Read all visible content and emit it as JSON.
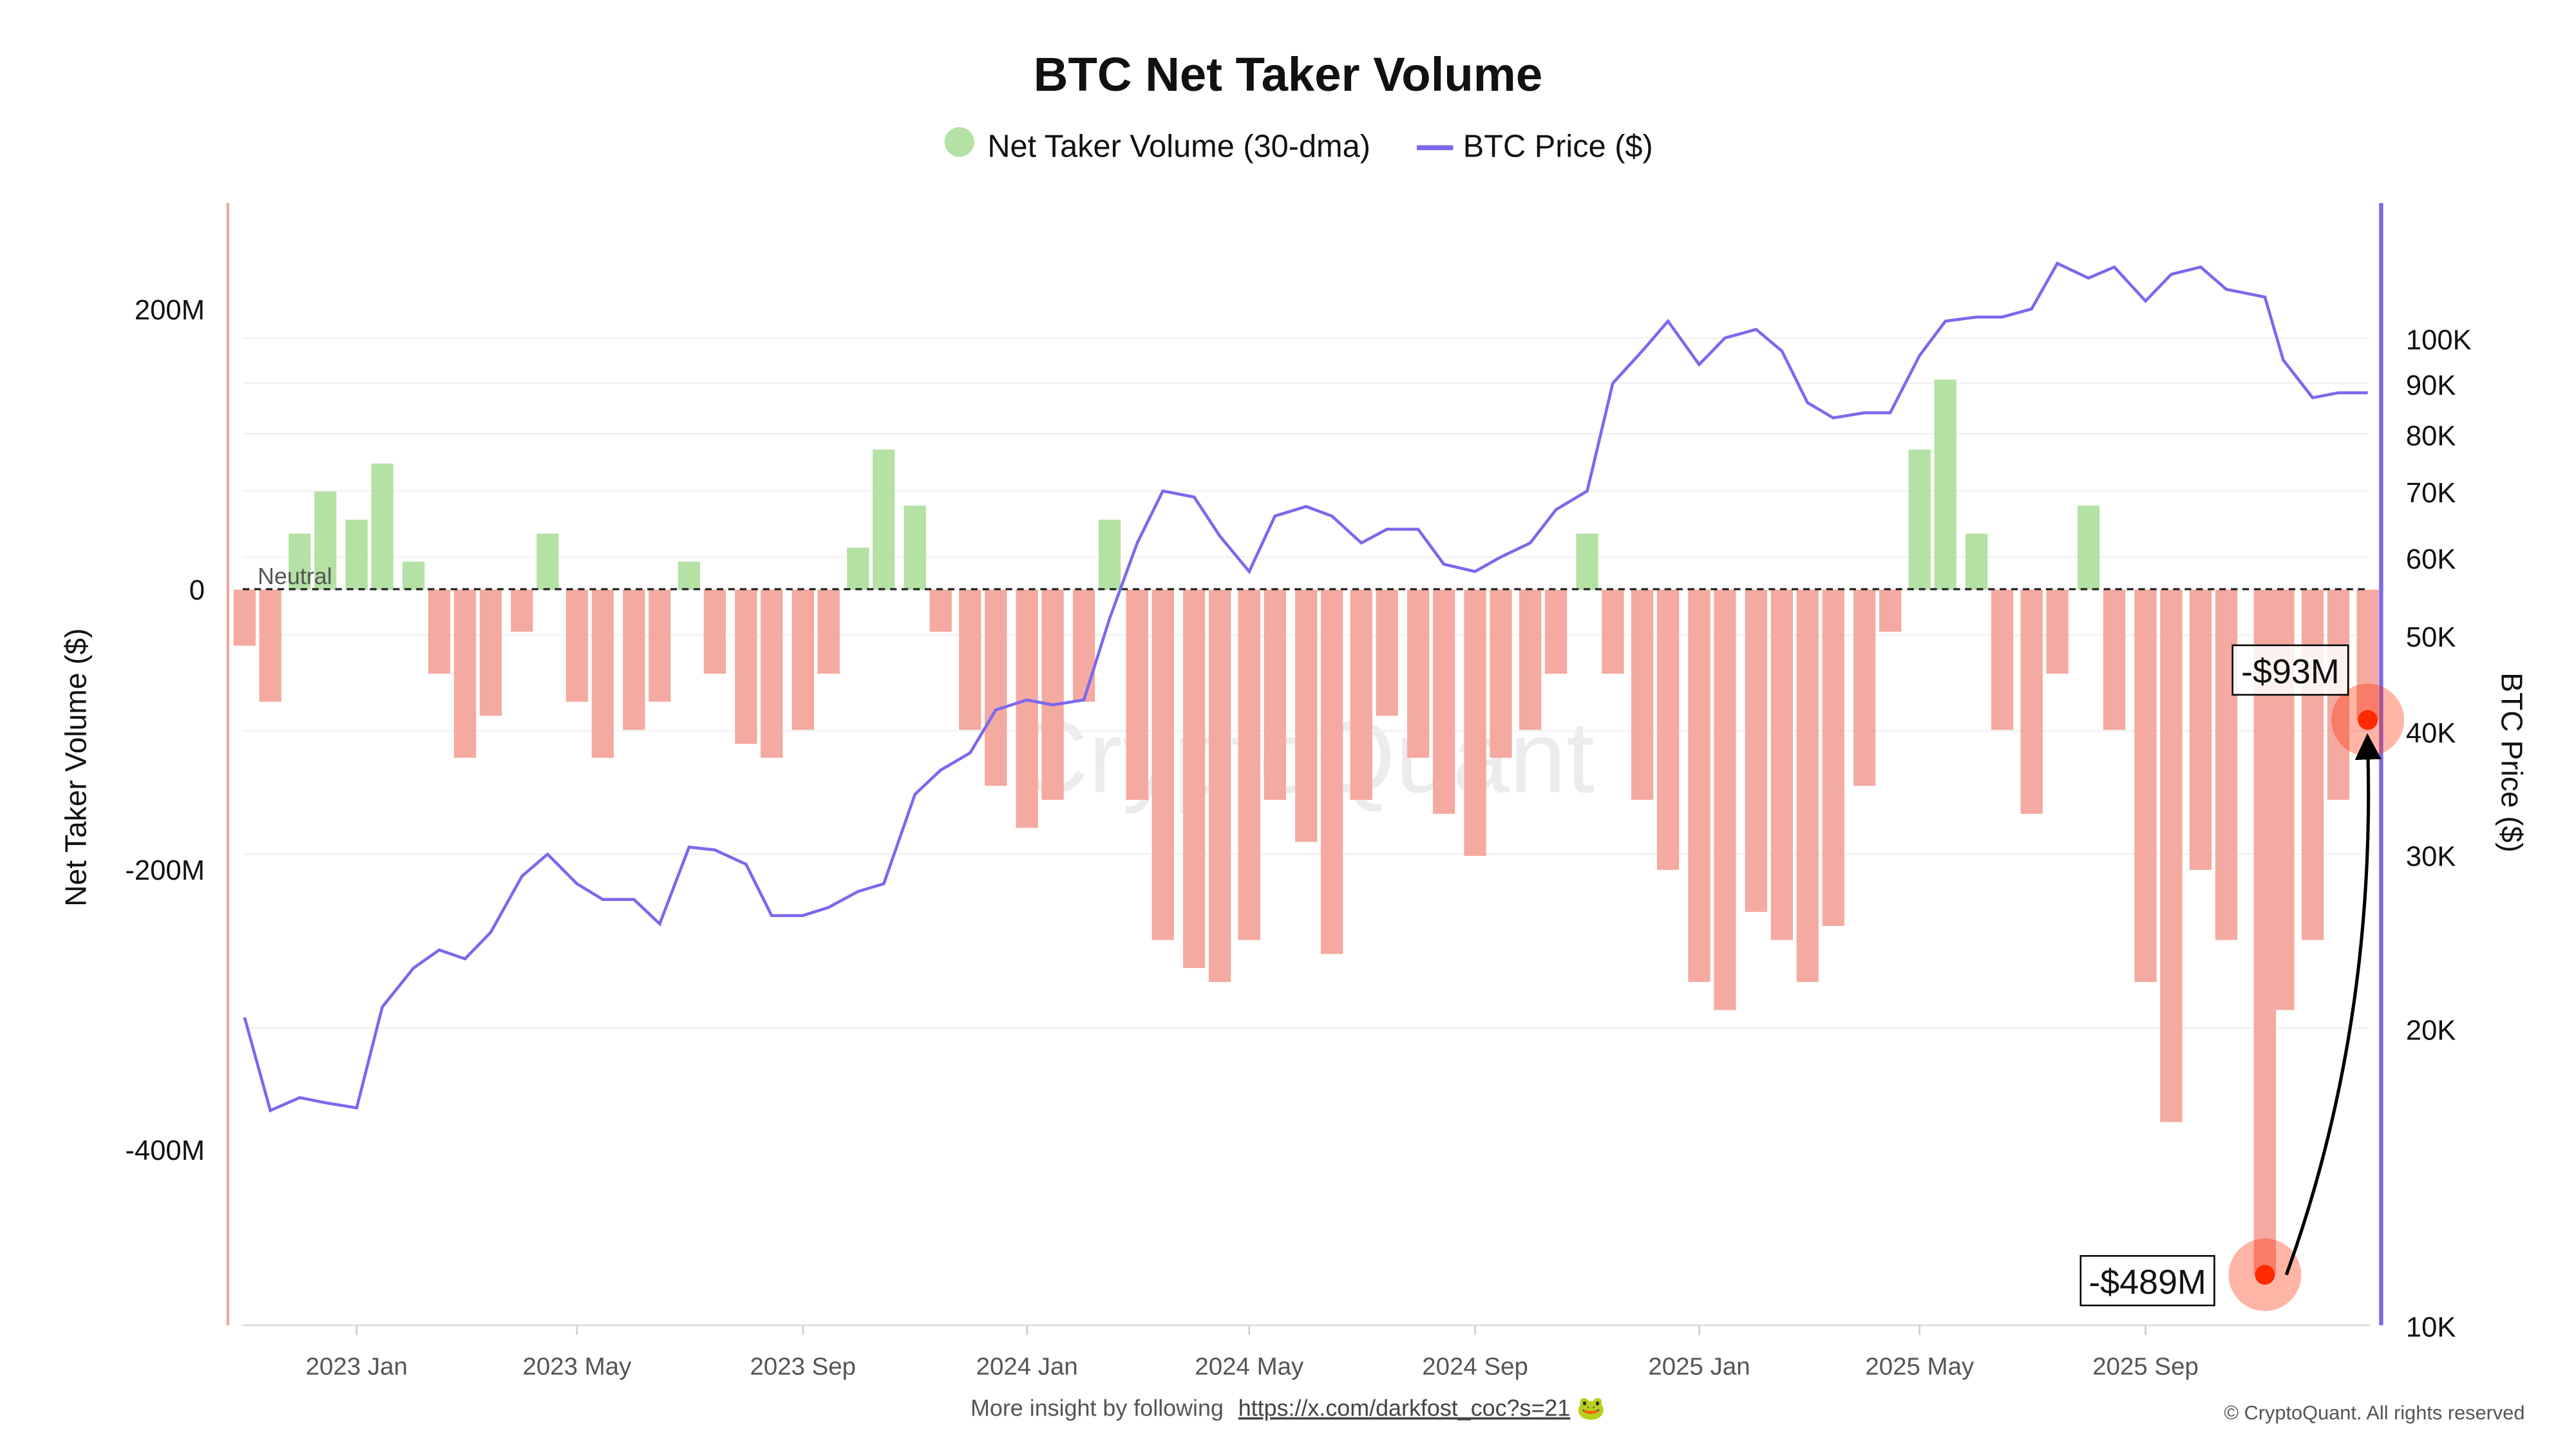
{
  "chart_data": {
    "type": "bar+line",
    "title": "BTC Net Taker Volume",
    "legend": {
      "placement": "top-center",
      "entries": [
        {
          "label": "Net Taker Volume (30-dma)",
          "color": "#b3e2a4",
          "marker": "circle"
        },
        {
          "label": "BTC Price ($)",
          "color": "#7b68ee",
          "marker": "line"
        }
      ]
    },
    "ylabel_left": "Net Taker Volume ($)",
    "ylabel_right": "BTC Price ($)",
    "yticks_left": [
      {
        "value": 200,
        "label": "200M"
      },
      {
        "value": 0,
        "label": "0"
      },
      {
        "value": -200,
        "label": "-200M"
      },
      {
        "value": -400,
        "label": "-400M"
      }
    ],
    "ylim_left": [
      -525,
      276
    ],
    "yticks_right": [
      {
        "value": 100000,
        "label": "100K"
      },
      {
        "value": 90000,
        "label": "90K"
      },
      {
        "value": 80000,
        "label": "80K"
      },
      {
        "value": 70000,
        "label": "70K"
      },
      {
        "value": 60000,
        "label": "60K"
      },
      {
        "value": 50000,
        "label": "50K"
      },
      {
        "value": 40000,
        "label": "40K"
      },
      {
        "value": 30000,
        "label": "30K"
      },
      {
        "value": 20000,
        "label": "20K"
      },
      {
        "value": 10000,
        "label": "10K"
      }
    ],
    "ylim_right": [
      10000,
      137000
    ],
    "right_scale": "log",
    "xlim": [
      "2022-10-31",
      "2026-01-01"
    ],
    "xticks": [
      {
        "date": "2023-01-01",
        "label": "2023 Jan"
      },
      {
        "date": "2023-05-01",
        "label": "2023 May"
      },
      {
        "date": "2023-09-01",
        "label": "2023 Sep"
      },
      {
        "date": "2024-01-01",
        "label": "2024 Jan"
      },
      {
        "date": "2024-05-01",
        "label": "2024 May"
      },
      {
        "date": "2024-09-01",
        "label": "2024 Sep"
      },
      {
        "date": "2025-01-01",
        "label": "2025 Jan"
      },
      {
        "date": "2025-05-01",
        "label": "2025 May"
      },
      {
        "date": "2025-09-01",
        "label": "2025 Sep"
      }
    ],
    "grid": true,
    "neutral_line": {
      "value": 0,
      "label": "Neutral"
    },
    "colors": {
      "positive": "#b3e2a4",
      "negative": "#f4aaa0",
      "price": "#7b68ee",
      "left_axis": "#f0a090",
      "highlight": "#ff2a00"
    },
    "x": [
      "2022-11-01",
      "2022-11-15",
      "2022-12-01",
      "2022-12-15",
      "2023-01-01",
      "2023-01-15",
      "2023-02-01",
      "2023-02-15",
      "2023-03-01",
      "2023-03-15",
      "2023-04-01",
      "2023-04-15",
      "2023-05-01",
      "2023-05-15",
      "2023-06-01",
      "2023-06-15",
      "2023-07-01",
      "2023-07-15",
      "2023-08-01",
      "2023-08-15",
      "2023-09-01",
      "2023-09-15",
      "2023-10-01",
      "2023-10-15",
      "2023-11-01",
      "2023-11-15",
      "2023-12-01",
      "2023-12-15",
      "2024-01-01",
      "2024-01-15",
      "2024-02-01",
      "2024-02-15",
      "2024-03-01",
      "2024-03-15",
      "2024-04-01",
      "2024-04-15",
      "2024-05-01",
      "2024-05-15",
      "2024-06-01",
      "2024-06-15",
      "2024-07-01",
      "2024-07-15",
      "2024-08-01",
      "2024-08-15",
      "2024-09-01",
      "2024-09-15",
      "2024-10-01",
      "2024-10-15",
      "2024-11-01",
      "2024-11-15",
      "2024-12-01",
      "2024-12-15",
      "2025-01-01",
      "2025-01-15",
      "2025-02-01",
      "2025-02-15",
      "2025-03-01",
      "2025-03-15",
      "2025-04-01",
      "2025-04-15",
      "2025-05-01",
      "2025-05-15",
      "2025-06-01",
      "2025-06-15",
      "2025-07-01",
      "2025-07-15",
      "2025-08-01",
      "2025-08-15",
      "2025-09-01",
      "2025-09-15",
      "2025-10-01",
      "2025-10-15",
      "2025-11-05",
      "2025-11-15",
      "2025-12-01",
      "2025-12-15",
      "2025-12-31"
    ],
    "series": [
      {
        "name": "Net Taker Volume (30-dma)",
        "type": "bar",
        "unit": "M USD",
        "values": [
          -40,
          -80,
          40,
          70,
          50,
          90,
          20,
          -60,
          -120,
          -90,
          -30,
          40,
          -80,
          -120,
          -100,
          -80,
          20,
          -60,
          -110,
          -120,
          -100,
          -60,
          30,
          100,
          60,
          -30,
          -100,
          -140,
          -170,
          -150,
          -80,
          50,
          -150,
          -250,
          -270,
          -280,
          -250,
          -150,
          -180,
          -260,
          -150,
          -90,
          -120,
          -160,
          -190,
          -120,
          -100,
          -60,
          40,
          -60,
          -150,
          -200,
          -280,
          -300,
          -230,
          -250,
          -280,
          -240,
          -140,
          -30,
          100,
          150,
          40,
          -100,
          -160,
          -60,
          60,
          -100,
          -280,
          -380,
          -200,
          -250,
          -489,
          -300,
          -250,
          -150,
          -93
        ]
      },
      {
        "name": "BTC Price ($)",
        "type": "line",
        "unit": "USD",
        "values": [
          20500,
          16500,
          17000,
          16800,
          16600,
          21000,
          23000,
          24000,
          23500,
          25000,
          28500,
          30000,
          28000,
          27000,
          27000,
          25500,
          30500,
          30300,
          29300,
          26000,
          26000,
          26500,
          27500,
          28000,
          34500,
          36500,
          38000,
          42000,
          43000,
          42500,
          43000,
          52000,
          62000,
          70000,
          69000,
          63000,
          58000,
          66000,
          67500,
          66000,
          62000,
          64000,
          64000,
          59000,
          58000,
          60000,
          62000,
          67000,
          70000,
          90000,
          97000,
          104000,
          94000,
          100000,
          102000,
          97000,
          86000,
          83000,
          84000,
          84000,
          96000,
          104000,
          105000,
          105000,
          107000,
          119000,
          115000,
          118000,
          109000,
          116000,
          118000,
          112000,
          110000,
          95000,
          87000,
          88000,
          88000
        ]
      }
    ],
    "annotations": [
      {
        "label": "-$489M",
        "date": "2025-11-05",
        "value": -489
      },
      {
        "label": "-$93M",
        "date": "2025-12-31",
        "value": -93
      }
    ],
    "watermark": "CryptoQuant",
    "footer": {
      "text": "More insight by following",
      "link": "https://x.com/darkfost_coc?s=21",
      "emoji": "🐸"
    },
    "copyright": "© CryptoQuant. All rights reserved"
  }
}
